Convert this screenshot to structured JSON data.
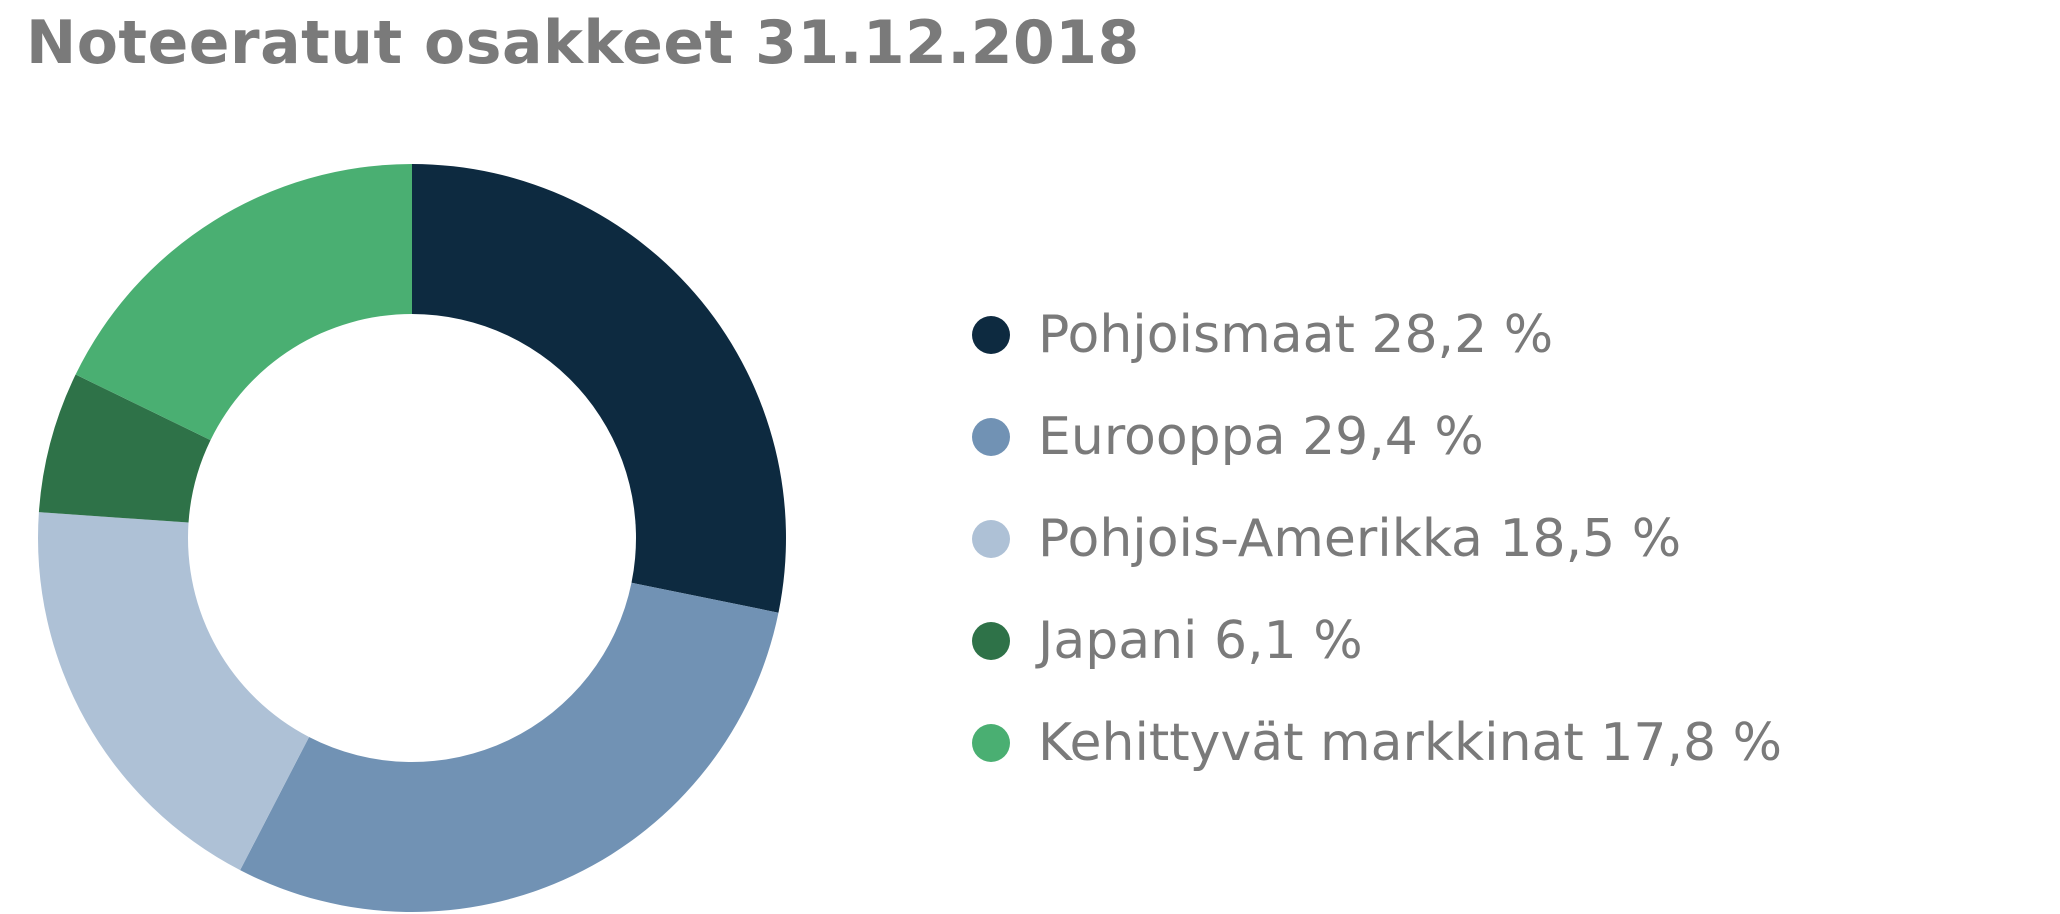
{
  "chart_data": {
    "type": "pie",
    "title": "Noteeratut osakkeet 31.12.2018",
    "unit": "%",
    "slices": [
      {
        "label": "Pohjoismaat",
        "value": 28.2,
        "display": "Pohjoismaat 28,2 %",
        "color": "#0d2a40"
      },
      {
        "label": "Eurooppa",
        "value": 29.4,
        "display": "Eurooppa 29,4 %",
        "color": "#7192b4"
      },
      {
        "label": "Pohjois-Amerikka",
        "value": 18.5,
        "display": "Pohjois-Amerikka 18,5 %",
        "color": "#aec1d6"
      },
      {
        "label": "Japani",
        "value": 6.1,
        "display": "Japani 6,1 %",
        "color": "#2e7248"
      },
      {
        "label": "Kehittyvät markkinat",
        "value": 17.8,
        "display": "Kehittyvät markkinat 17,8 %",
        "color": "#4aaf72"
      }
    ],
    "legend_position": "right",
    "start_angle": "12 o'clock, clockwise"
  }
}
